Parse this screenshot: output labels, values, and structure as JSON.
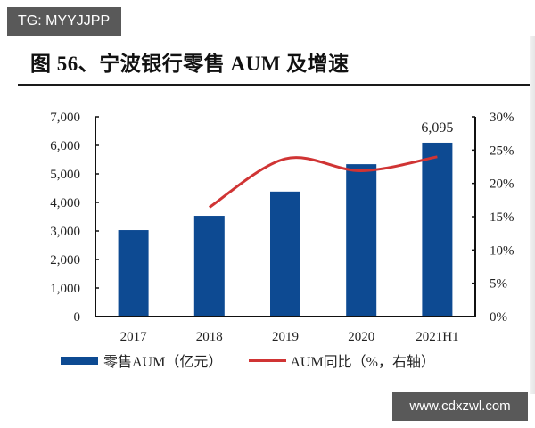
{
  "watermarks": {
    "top_left": "TG: MYYJJPP",
    "bottom_right": "www.cdxzwl.com"
  },
  "figure": {
    "title": "图 56、宁波银行零售 AUM 及增速"
  },
  "colors": {
    "bar": "#0d4a92",
    "line": "#d03434",
    "axis": "#111111"
  },
  "legend": {
    "bar_label": "零售AUM（亿元）",
    "line_label": "AUM同比（%，右轴）"
  },
  "chart_data": {
    "type": "bar",
    "title": "图 56、宁波银行零售 AUM 及增速",
    "categories": [
      "2017",
      "2018",
      "2019",
      "2020",
      "2021H1"
    ],
    "series": [
      {
        "name": "零售AUM（亿元）",
        "type": "bar",
        "axis": "left",
        "values": [
          3030,
          3530,
          4380,
          5340,
          6095
        ]
      },
      {
        "name": "AUM同比（%，右轴）",
        "type": "line",
        "axis": "right",
        "smooth": true,
        "values": [
          null,
          16.4,
          23.7,
          21.9,
          24.0
        ]
      }
    ],
    "data_labels": [
      {
        "category": "2021H1",
        "text": "6,095"
      }
    ],
    "left_axis": {
      "ylim": [
        0,
        7000
      ],
      "ticks": [
        "0",
        "1,000",
        "2,000",
        "3,000",
        "4,000",
        "5,000",
        "6,000",
        "7,000"
      ]
    },
    "right_axis": {
      "ylim": [
        0,
        30
      ],
      "ticks": [
        "0%",
        "5%",
        "10%",
        "15%",
        "20%",
        "25%",
        "30%"
      ]
    },
    "xlabel": "",
    "ylabel": "",
    "grid": false,
    "legend_position": "bottom"
  }
}
